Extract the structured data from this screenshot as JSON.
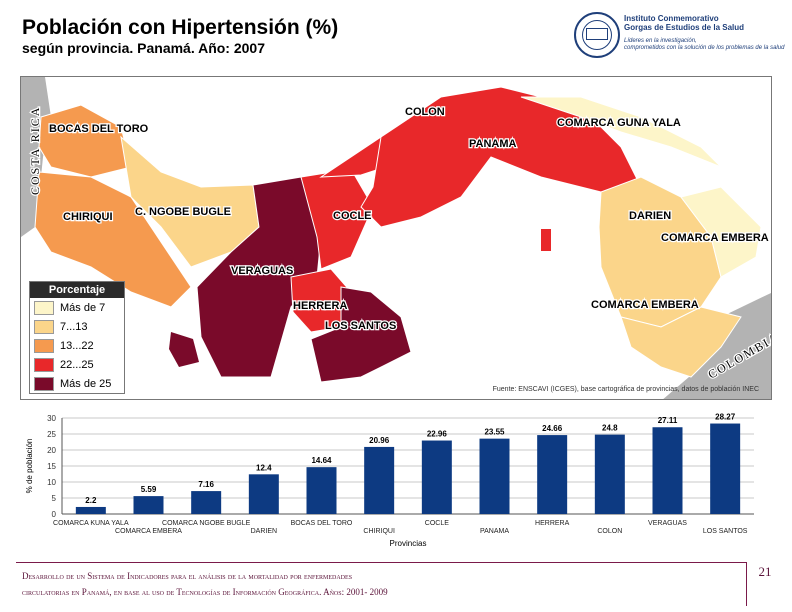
{
  "header": {
    "title": "Población con Hipertensión (%)",
    "subtitle": "según provincia. Panamá. Año: 2007"
  },
  "logo": {
    "name_line1": "Instituto Conmemorativo",
    "name_line2": "Gorgas de Estudios de la Salud",
    "tag_line1": "Líderes en la investigación,",
    "tag_line2": "comprometidos con la solución de los problemas de la salud"
  },
  "map": {
    "neighbor_left": "COSTA RICA",
    "neighbor_right": "COLOMBIA",
    "labels": {
      "bocas": "BOCAS DEL TORO",
      "chiriqui": "CHIRIQUI",
      "ngobe": "C. NGOBE BUGLE",
      "veraguas": "VERAGUAS",
      "cocle": "COCLE",
      "colon": "COLON",
      "panama": "PANAMA",
      "herrera": "HERRERA",
      "los_santos": "LOS SANTOS",
      "guna_yala": "COMARCA GUNA YALA",
      "darien": "DARIEN",
      "embera_1": "COMARCA EMBERA",
      "embera_2": "COMARCA EMBERA"
    },
    "legend": {
      "title": "Porcentaje",
      "items": [
        {
          "label": "Más de 7",
          "color": "#fdf5c9"
        },
        {
          "label": "7...13",
          "color": "#fbd58a"
        },
        {
          "label": "13...22",
          "color": "#f59a4f"
        },
        {
          "label": "22...25",
          "color": "#e8282a"
        },
        {
          "label": "Más de 25",
          "color": "#7a0a2a"
        }
      ]
    },
    "source": "Fuente: ENSCAVI (ICGES), base cartográfica de provincias, datos de población INEC"
  },
  "chart_data": {
    "type": "bar",
    "categories": [
      "COMARCA KUNA YALA",
      "COMARCA EMBERA",
      "COMARCA NGOBE BUGLE",
      "DARIEN",
      "BOCAS DEL TORO",
      "CHIRIQUI",
      "COCLE",
      "PANAMA",
      "HERRERA",
      "COLON",
      "VERAGUAS",
      "LOS SANTOS"
    ],
    "values": [
      2.2,
      5.59,
      7.16,
      12.4,
      14.64,
      20.96,
      22.96,
      23.55,
      24.66,
      24.8,
      27.11,
      28.27
    ],
    "value_labels": [
      "2.2",
      "5.59",
      "7.16",
      "12.4",
      "14.64",
      "20.96",
      "22.96",
      "23.55",
      "24.66",
      "24.8",
      "27.11",
      "28.27"
    ],
    "xlabel": "Provincias",
    "ylabel": "% de población",
    "ylim": [
      0,
      30
    ],
    "yticks": [
      "0",
      "5",
      "10",
      "15",
      "20",
      "25",
      "30"
    ],
    "grid": true,
    "bar_color": "#0d3a82"
  },
  "footer": {
    "line1": "Desarrollo de un Sistema de Indicadores para el análisis de la mortalidad por enfermedades",
    "line2": "circulatorias en Panamá, en base al uso de Tecnologías de Información Geográfica. Años: 2001- 2009",
    "page_number": "21"
  }
}
